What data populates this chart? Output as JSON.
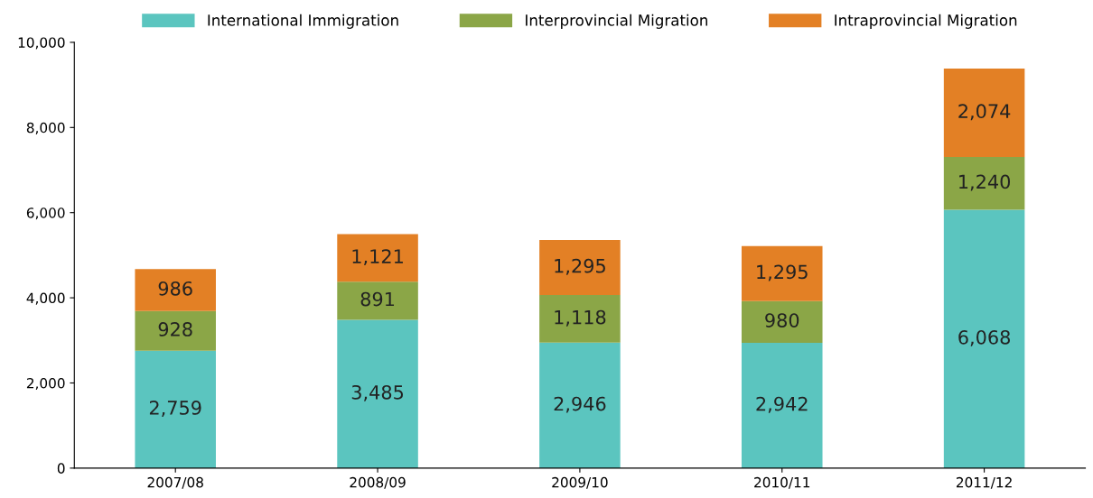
{
  "chart_data": {
    "type": "bar",
    "stacked": true,
    "categories": [
      "2007/08",
      "2008/09",
      "2009/10",
      "2010/11",
      "2011/12"
    ],
    "series": [
      {
        "name": "International Immigration",
        "color": "#5bc5bf",
        "values": [
          2759,
          3485,
          2946,
          2942,
          6068
        ],
        "value_labels": [
          "2,759",
          "3,485",
          "2,946",
          "2,942",
          "6,068"
        ]
      },
      {
        "name": "Interprovincial Migration",
        "color": "#8ba647",
        "values": [
          928,
          891,
          1118,
          980,
          1240
        ],
        "value_labels": [
          "928",
          "891",
          "1,118",
          "980",
          "1,240"
        ]
      },
      {
        "name": "Intraprovincial Migration",
        "color": "#e38025",
        "values": [
          986,
          1121,
          1295,
          1295,
          2074
        ],
        "value_labels": [
          "986",
          "1,121",
          "1,295",
          "1,295",
          "2,074"
        ]
      }
    ],
    "ylim": [
      0,
      10000
    ],
    "yticks": [
      {
        "value": 0,
        "label": "0"
      },
      {
        "value": 2000,
        "label": "2,000"
      },
      {
        "value": 4000,
        "label": "4,000"
      },
      {
        "value": 6000,
        "label": "6,000"
      },
      {
        "value": 8000,
        "label": "8,000"
      },
      {
        "value": 10000,
        "label": "10,000"
      }
    ],
    "grid": false,
    "legend": "top"
  }
}
